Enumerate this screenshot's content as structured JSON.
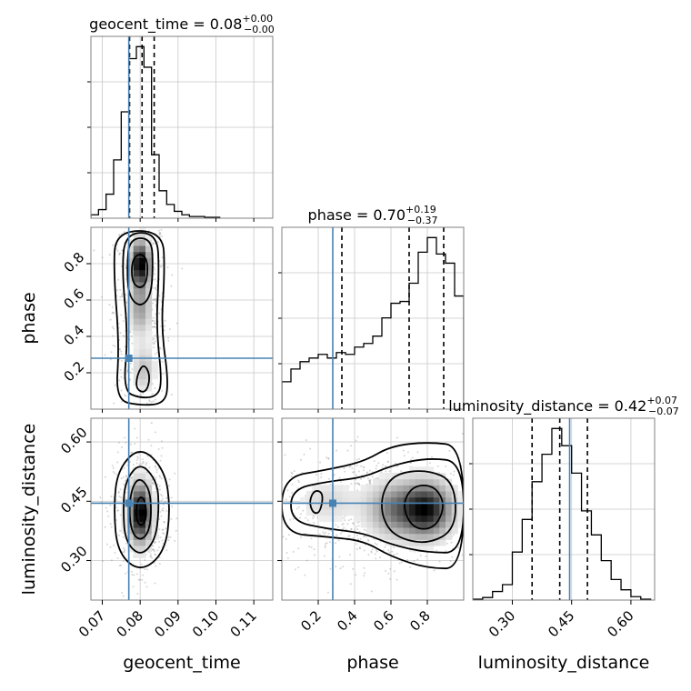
{
  "chart_data": {
    "type": "corner",
    "parameters": [
      "geocent_time",
      "phase",
      "luminosity_distance"
    ],
    "truths": {
      "geocent_time": 0.077,
      "phase": 0.28,
      "luminosity_distance": 0.445
    },
    "colors": {
      "truth": "#4682b4",
      "hist": "#000000",
      "grid": "#c8c8c8",
      "frame": "#808080"
    },
    "grid": true,
    "axis_labels": {
      "x": [
        "geocent_time",
        "phase",
        "luminosity_distance"
      ],
      "y": [
        "phase",
        "luminosity_distance"
      ]
    },
    "diagonal": [
      {
        "param": "geocent_time",
        "title": {
          "base": "geocent_time = 0.08",
          "sup": "+0.00",
          "sub": "−0.00"
        },
        "xlim": [
          0.067,
          0.115
        ],
        "ticks": [
          0.07,
          0.08,
          0.09,
          0.1,
          0.11
        ],
        "tick_labels": [
          "0.07",
          "0.08",
          "0.09",
          "0.10",
          "0.11"
        ],
        "quantiles": [
          0.0772,
          0.0805,
          0.0837
        ],
        "hist": {
          "edges": [
            0.067,
            0.069,
            0.071,
            0.073,
            0.075,
            0.077,
            0.079,
            0.081,
            0.083,
            0.085,
            0.087,
            0.089,
            0.091,
            0.093,
            0.095,
            0.097,
            0.099,
            0.101
          ],
          "counts": [
            0.02,
            0.05,
            0.14,
            0.34,
            0.62,
            0.93,
            1.0,
            0.88,
            0.37,
            0.16,
            0.08,
            0.04,
            0.02,
            0.01,
            0.01,
            0.005,
            0.005
          ]
        }
      },
      {
        "param": "phase",
        "title": {
          "base": "phase = 0.70",
          "sup": "+0.19",
          "sub": "−0.37"
        },
        "xlim": [
          0.0,
          1.0
        ],
        "ticks": [
          0.2,
          0.4,
          0.6,
          0.8
        ],
        "tick_labels": [
          "0.2",
          "0.4",
          "0.6",
          "0.8"
        ],
        "quantiles": [
          0.33,
          0.7,
          0.89
        ],
        "hist": {
          "edges": [
            0.0,
            0.05,
            0.1,
            0.15,
            0.2,
            0.25,
            0.3,
            0.35,
            0.4,
            0.45,
            0.5,
            0.55,
            0.6,
            0.65,
            0.7,
            0.75,
            0.8,
            0.85,
            0.9,
            0.95,
            1.0
          ],
          "counts": [
            0.15,
            0.22,
            0.26,
            0.28,
            0.3,
            0.28,
            0.31,
            0.3,
            0.34,
            0.36,
            0.4,
            0.5,
            0.58,
            0.59,
            0.69,
            0.86,
            0.94,
            0.85,
            0.8,
            0.62
          ]
        }
      },
      {
        "param": "luminosity_distance",
        "title": {
          "base": "luminosity_distance = 0.42",
          "sup": "+0.07",
          "sub": "−0.07"
        },
        "xlim": [
          0.2,
          0.66
        ],
        "ticks": [
          0.3,
          0.45,
          0.6
        ],
        "tick_labels": [
          "0.30",
          "0.45",
          "0.60"
        ],
        "quantiles": [
          0.35,
          0.42,
          0.49
        ],
        "hist": {
          "edges": [
            0.2,
            0.225,
            0.25,
            0.275,
            0.3,
            0.325,
            0.35,
            0.375,
            0.4,
            0.425,
            0.45,
            0.475,
            0.5,
            0.525,
            0.55,
            0.575,
            0.6,
            0.625,
            0.65
          ],
          "counts": [
            0.005,
            0.015,
            0.05,
            0.09,
            0.28,
            0.47,
            0.69,
            0.85,
            1.0,
            0.9,
            0.74,
            0.52,
            0.38,
            0.23,
            0.12,
            0.06,
            0.02,
            0.005
          ]
        }
      }
    ],
    "off_diagonal": [
      {
        "x": "geocent_time",
        "y": "phase",
        "xlim": [
          0.067,
          0.115
        ],
        "ylim": [
          0.0,
          1.0
        ],
        "y_ticks": [
          0.2,
          0.4,
          0.6,
          0.8
        ],
        "y_tick_labels": [
          "0.2",
          "0.4",
          "0.6",
          "0.8"
        ],
        "density_blobs": [
          {
            "cx": 0.08,
            "cy": 0.8,
            "sx": 0.0018,
            "sy": 0.09,
            "w": 1.0
          },
          {
            "cx": 0.08,
            "cy": 0.55,
            "sx": 0.0022,
            "sy": 0.1,
            "w": 0.45
          },
          {
            "cx": 0.081,
            "cy": 0.22,
            "sx": 0.0022,
            "sy": 0.09,
            "w": 0.32
          }
        ],
        "point_cloud": {
          "cx": 0.08,
          "cy": 0.55,
          "sx": 0.0035,
          "sy": 0.28,
          "n": 650
        },
        "contours": [
          [
            [
              0.0735,
              0.05
            ],
            [
              0.0745,
              0.35
            ],
            [
              0.073,
              0.75
            ],
            [
              0.0735,
              0.98
            ],
            [
              0.086,
              0.98
            ],
            [
              0.0865,
              0.75
            ],
            [
              0.0855,
              0.45
            ],
            [
              0.0875,
              0.15
            ],
            [
              0.0865,
              0.03
            ],
            [
              0.08,
              0.02
            ]
          ],
          [
            [
              0.0755,
              0.1
            ],
            [
              0.0768,
              0.4
            ],
            [
              0.0752,
              0.75
            ],
            [
              0.076,
              0.97
            ],
            [
              0.0845,
              0.97
            ],
            [
              0.085,
              0.75
            ],
            [
              0.0842,
              0.45
            ],
            [
              0.0858,
              0.15
            ],
            [
              0.0845,
              0.07
            ],
            [
              0.08,
              0.06
            ]
          ],
          [
            [
              0.077,
              0.62
            ],
            [
              0.0765,
              0.78
            ],
            [
              0.0772,
              0.94
            ],
            [
              0.083,
              0.94
            ],
            [
              0.0834,
              0.78
            ],
            [
              0.0828,
              0.62
            ],
            [
              0.08,
              0.56
            ]
          ],
          [
            [
              0.0788,
              0.12
            ],
            [
              0.0794,
              0.2
            ],
            [
              0.081,
              0.25
            ],
            [
              0.0826,
              0.19
            ],
            [
              0.082,
              0.11
            ],
            [
              0.0805,
              0.09
            ]
          ],
          [
            [
              0.0778,
              0.7
            ],
            [
              0.0778,
              0.82
            ],
            [
              0.08,
              0.86
            ],
            [
              0.082,
              0.82
            ],
            [
              0.0818,
              0.7
            ],
            [
              0.08,
              0.66
            ]
          ]
        ]
      },
      {
        "x": "geocent_time",
        "y": "luminosity_distance",
        "xlim": [
          0.067,
          0.115
        ],
        "ylim": [
          0.2,
          0.66
        ],
        "y_ticks": [
          0.3,
          0.45,
          0.6
        ],
        "y_tick_labels": [
          "0.30",
          "0.45",
          "0.60"
        ],
        "density_blobs": [
          {
            "cx": 0.08,
            "cy": 0.42,
            "sx": 0.0022,
            "sy": 0.055,
            "w": 1.0
          }
        ],
        "point_cloud": {
          "cx": 0.08,
          "cy": 0.43,
          "sx": 0.0035,
          "sy": 0.075,
          "n": 650
        },
        "contours": [
          [
            [
              0.073,
              0.43
            ],
            [
              0.074,
              0.53
            ],
            [
              0.08,
              0.59
            ],
            [
              0.0865,
              0.53
            ],
            [
              0.088,
              0.43
            ],
            [
              0.0865,
              0.32
            ],
            [
              0.08,
              0.27
            ],
            [
              0.074,
              0.32
            ]
          ],
          [
            [
              0.0755,
              0.43
            ],
            [
              0.076,
              0.5
            ],
            [
              0.08,
              0.55
            ],
            [
              0.0845,
              0.5
            ],
            [
              0.085,
              0.43
            ],
            [
              0.084,
              0.35
            ],
            [
              0.08,
              0.31
            ],
            [
              0.076,
              0.35
            ]
          ],
          [
            [
              0.077,
              0.43
            ],
            [
              0.078,
              0.49
            ],
            [
              0.08,
              0.51
            ],
            [
              0.0825,
              0.48
            ],
            [
              0.083,
              0.42
            ],
            [
              0.0822,
              0.37
            ],
            [
              0.08,
              0.35
            ],
            [
              0.0778,
              0.37
            ]
          ],
          [
            [
              0.0788,
              0.42
            ],
            [
              0.0795,
              0.46
            ],
            [
              0.081,
              0.46
            ],
            [
              0.0818,
              0.42
            ],
            [
              0.081,
              0.39
            ],
            [
              0.0795,
              0.39
            ]
          ]
        ]
      },
      {
        "x": "phase",
        "y": "luminosity_distance",
        "xlim": [
          0.0,
          1.0
        ],
        "ylim": [
          0.2,
          0.66
        ],
        "density_blobs": [
          {
            "cx": 0.8,
            "cy": 0.43,
            "sx": 0.1,
            "sy": 0.05,
            "w": 1.0
          },
          {
            "cx": 0.6,
            "cy": 0.43,
            "sx": 0.1,
            "sy": 0.05,
            "w": 0.55
          },
          {
            "cx": 0.25,
            "cy": 0.45,
            "sx": 0.12,
            "sy": 0.04,
            "w": 0.25
          }
        ],
        "point_cloud": {
          "cx": 0.55,
          "cy": 0.43,
          "sx": 0.28,
          "sy": 0.07,
          "n": 1000
        },
        "contours": [
          [
            [
              0.0,
              0.51
            ],
            [
              0.25,
              0.53
            ],
            [
              0.45,
              0.55
            ],
            [
              0.6,
              0.59
            ],
            [
              0.8,
              0.6
            ],
            [
              1.0,
              0.59
            ],
            [
              1.0,
              0.28
            ],
            [
              0.8,
              0.28
            ],
            [
              0.6,
              0.31
            ],
            [
              0.45,
              0.35
            ],
            [
              0.25,
              0.36
            ],
            [
              0.0,
              0.37
            ]
          ],
          [
            [
              0.05,
              0.48
            ],
            [
              0.25,
              0.5
            ],
            [
              0.45,
              0.51
            ],
            [
              0.6,
              0.54
            ],
            [
              0.8,
              0.56
            ],
            [
              1.0,
              0.55
            ],
            [
              1.0,
              0.32
            ],
            [
              0.8,
              0.32
            ],
            [
              0.6,
              0.34
            ],
            [
              0.45,
              0.37
            ],
            [
              0.25,
              0.38
            ],
            [
              0.05,
              0.4
            ]
          ],
          [
            [
              0.55,
              0.47
            ],
            [
              0.62,
              0.52
            ],
            [
              0.8,
              0.53
            ],
            [
              0.95,
              0.5
            ],
            [
              0.96,
              0.38
            ],
            [
              0.8,
              0.34
            ],
            [
              0.62,
              0.36
            ],
            [
              0.55,
              0.41
            ]
          ],
          [
            [
              0.15,
              0.45
            ],
            [
              0.18,
              0.48
            ],
            [
              0.23,
              0.47
            ],
            [
              0.21,
              0.42
            ],
            [
              0.17,
              0.42
            ]
          ],
          [
            [
              0.66,
              0.44
            ],
            [
              0.72,
              0.49
            ],
            [
              0.84,
              0.49
            ],
            [
              0.9,
              0.44
            ],
            [
              0.84,
              0.38
            ],
            [
              0.72,
              0.38
            ]
          ]
        ]
      }
    ]
  }
}
